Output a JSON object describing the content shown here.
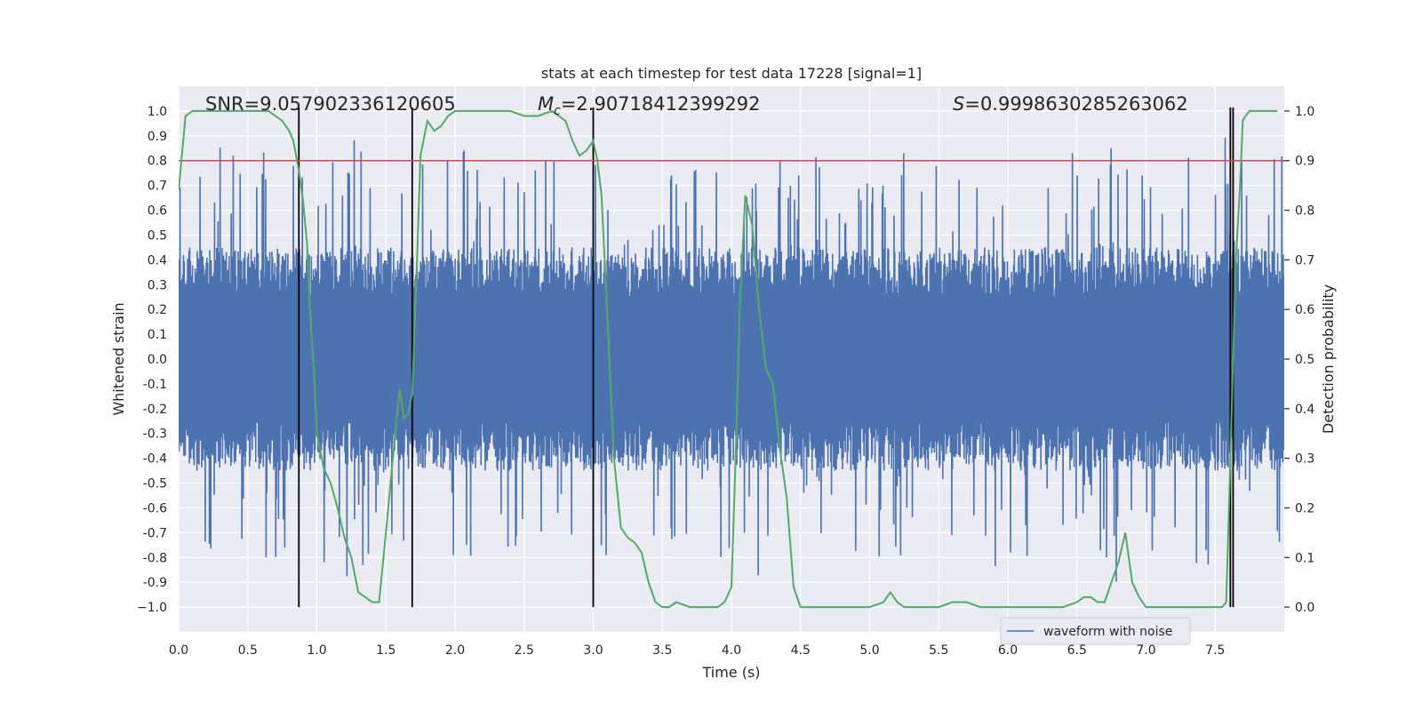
{
  "chart_data": {
    "type": "line",
    "title": "stats at each timestep for test data 17228 [signal=1]",
    "xlabel": "Time (s)",
    "ylabel": "Whitened strain",
    "ylabel_right": "Detection probability",
    "xlim": [
      0.0,
      8.0
    ],
    "ylim": [
      -1.1,
      1.1
    ],
    "ylim_right": [
      -0.05,
      1.05
    ],
    "x_ticks": [
      "0.0",
      "0.5",
      "1.0",
      "1.5",
      "2.0",
      "2.5",
      "3.0",
      "3.5",
      "4.0",
      "4.5",
      "5.0",
      "5.5",
      "6.0",
      "6.5",
      "7.0",
      "7.5"
    ],
    "x_tick_values": [
      0.0,
      0.5,
      1.0,
      1.5,
      2.0,
      2.5,
      3.0,
      3.5,
      4.0,
      4.5,
      5.0,
      5.5,
      6.0,
      6.5,
      7.0,
      7.5
    ],
    "y_ticks": [
      "1.0",
      "0.9",
      "0.8",
      "0.7",
      "0.6",
      "0.5",
      "0.4",
      "0.3",
      "0.2",
      "0.1",
      "0.0",
      "-0.1",
      "-0.2",
      "-0.3",
      "-0.4",
      "-0.5",
      "-0.6",
      "-0.7",
      "-0.8",
      "-0.9",
      "−1.0"
    ],
    "y_tick_values": [
      1.0,
      0.9,
      0.8,
      0.7,
      0.6,
      0.5,
      0.4,
      0.3,
      0.2,
      0.1,
      0.0,
      -0.1,
      -0.2,
      -0.3,
      -0.4,
      -0.5,
      -0.6,
      -0.7,
      -0.8,
      -0.9,
      -1.0
    ],
    "y_ticks_right": [
      "1.0",
      "0.9",
      "0.8",
      "0.7",
      "0.6",
      "0.5",
      "0.4",
      "0.3",
      "0.2",
      "0.1",
      "0.0"
    ],
    "y_tick_values_right": [
      1.0,
      0.9,
      0.8,
      0.7,
      0.6,
      0.5,
      0.4,
      0.3,
      0.2,
      0.1,
      0.0
    ],
    "grid": true,
    "legend": {
      "position": "lower-right",
      "entries": [
        "waveform with noise"
      ]
    },
    "annotations": {
      "snr": "SNR=9.057902336120605",
      "mc_symbol": "M",
      "mc_sub": "c",
      "mc_value": "=2.90718412399292",
      "s_symbol": "S",
      "s_value": "=0.9998630285263062"
    },
    "threshold_right": 0.9,
    "vertical_markers": [
      0.87,
      1.69,
      3.0,
      7.61,
      7.63
    ],
    "series": [
      {
        "name": "waveform with noise",
        "color": "#4c72b0",
        "axis": "left",
        "description_points": 3200
      },
      {
        "axis": "right",
        "color": "#55a868",
        "x": [
          0.0,
          0.05,
          0.1,
          0.2,
          0.3,
          0.4,
          0.5,
          0.6,
          0.65,
          0.7,
          0.75,
          0.8,
          0.83,
          0.87,
          0.9,
          0.93,
          0.95,
          0.98,
          1.0,
          1.05,
          1.1,
          1.15,
          1.2,
          1.25,
          1.3,
          1.35,
          1.4,
          1.45,
          1.5,
          1.55,
          1.6,
          1.63,
          1.66,
          1.69,
          1.72,
          1.75,
          1.8,
          1.85,
          1.9,
          1.95,
          2.0,
          2.05,
          2.1,
          2.2,
          2.3,
          2.4,
          2.5,
          2.6,
          2.7,
          2.75,
          2.8,
          2.85,
          2.9,
          2.95,
          3.0,
          3.03,
          3.06,
          3.1,
          3.15,
          3.2,
          3.25,
          3.3,
          3.35,
          3.4,
          3.45,
          3.5,
          3.55,
          3.6,
          3.7,
          3.8,
          3.85,
          3.9,
          3.95,
          4.0,
          4.03,
          4.06,
          4.1,
          4.15,
          4.2,
          4.25,
          4.3,
          4.35,
          4.4,
          4.45,
          4.5,
          4.6,
          4.7,
          4.8,
          4.9,
          5.0,
          5.1,
          5.15,
          5.2,
          5.25,
          5.3,
          5.4,
          5.5,
          5.6,
          5.65,
          5.7,
          5.8,
          5.9,
          6.0,
          6.1,
          6.2,
          6.3,
          6.4,
          6.5,
          6.55,
          6.6,
          6.65,
          6.7,
          6.75,
          6.8,
          6.85,
          6.9,
          6.95,
          7.0,
          7.1,
          7.2,
          7.3,
          7.4,
          7.5,
          7.55,
          7.58,
          7.6,
          7.62,
          7.65,
          7.68,
          7.7,
          7.72,
          7.75,
          7.8,
          7.85,
          7.9,
          7.95
        ],
        "y": [
          0.84,
          0.99,
          1.0,
          1.0,
          1.0,
          1.0,
          1.0,
          1.0,
          1.0,
          0.99,
          0.98,
          0.96,
          0.94,
          0.88,
          0.82,
          0.73,
          0.6,
          0.47,
          0.35,
          0.28,
          0.25,
          0.2,
          0.14,
          0.1,
          0.03,
          0.02,
          0.01,
          0.01,
          0.15,
          0.3,
          0.44,
          0.38,
          0.39,
          0.43,
          0.66,
          0.91,
          0.98,
          0.96,
          0.97,
          0.99,
          1.0,
          1.0,
          1.0,
          1.0,
          1.0,
          1.0,
          0.99,
          0.99,
          1.0,
          0.99,
          0.98,
          0.94,
          0.91,
          0.92,
          0.94,
          0.9,
          0.83,
          0.6,
          0.3,
          0.16,
          0.14,
          0.13,
          0.11,
          0.05,
          0.01,
          0.0,
          0.0,
          0.01,
          0.0,
          0.0,
          0.0,
          0.0,
          0.01,
          0.04,
          0.3,
          0.6,
          0.83,
          0.77,
          0.6,
          0.48,
          0.45,
          0.32,
          0.22,
          0.04,
          0.0,
          0.0,
          0.0,
          0.0,
          0.0,
          0.0,
          0.01,
          0.03,
          0.01,
          0.0,
          0.0,
          0.0,
          0.0,
          0.01,
          0.01,
          0.01,
          0.0,
          0.0,
          0.0,
          0.0,
          0.0,
          0.0,
          0.0,
          0.01,
          0.02,
          0.02,
          0.01,
          0.01,
          0.05,
          0.09,
          0.15,
          0.05,
          0.02,
          0.0,
          0.0,
          0.0,
          0.0,
          0.0,
          0.0,
          0.0,
          0.01,
          0.2,
          0.4,
          0.7,
          0.85,
          0.98,
          0.99,
          1.0,
          1.0,
          1.0,
          1.0,
          1.0
        ]
      }
    ]
  }
}
